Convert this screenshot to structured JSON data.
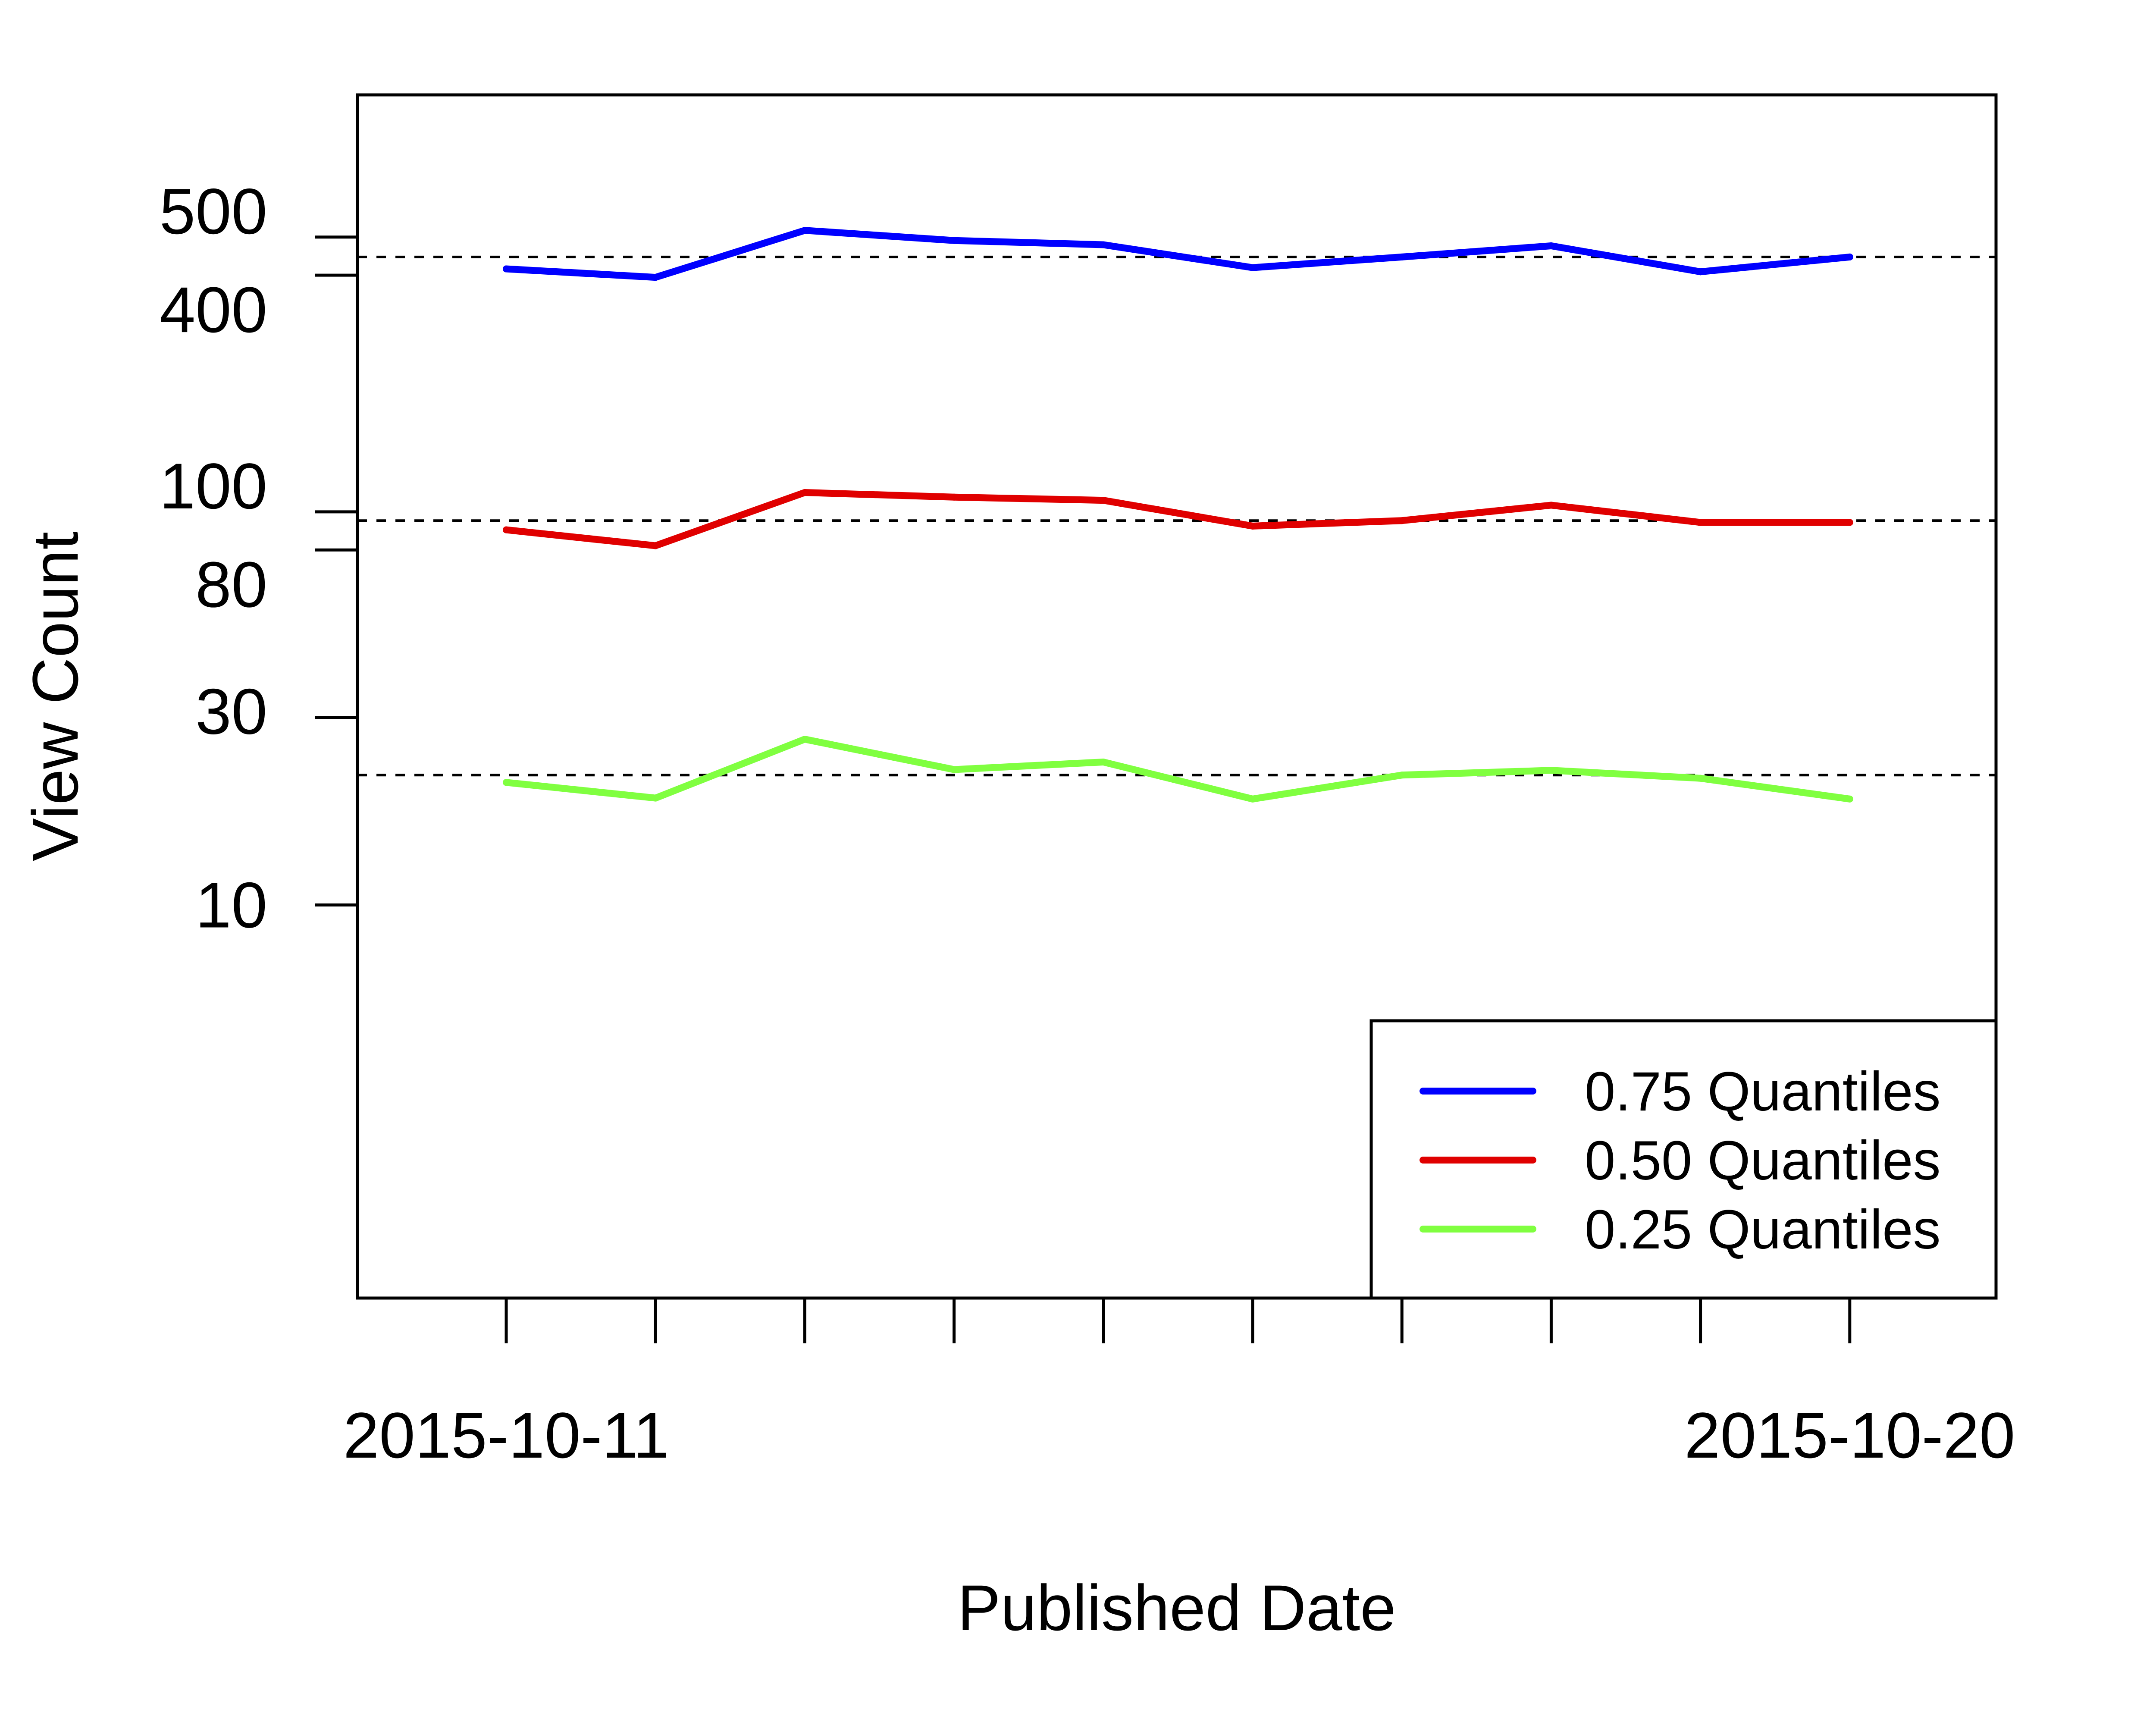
{
  "chart_data": {
    "type": "line",
    "title": "",
    "xlabel": "Published Date",
    "ylabel": "View Count",
    "x": [
      "2015-10-11",
      "2015-10-12",
      "2015-10-13",
      "2015-10-14",
      "2015-10-15",
      "2015-10-16",
      "2015-10-17",
      "2015-10-18",
      "2015-10-19",
      "2015-10-20"
    ],
    "x_tick_labels": [
      {
        "x": "2015-10-11",
        "label": "2015-10-11"
      },
      {
        "x": "2015-10-20",
        "label": "2015-10-20"
      }
    ],
    "y_ticks": [
      {
        "value": 10,
        "label": "10"
      },
      {
        "value": 30,
        "label": "30"
      },
      {
        "value": 80,
        "label": "80"
      },
      {
        "value": 100,
        "label": "100"
      },
      {
        "value": 400,
        "label": "400"
      },
      {
        "value": 500,
        "label": "500"
      }
    ],
    "y_scale": "log",
    "ylim": [
      1,
      1150
    ],
    "series": [
      {
        "name": "0.75 Quantiles",
        "color": "#0000ff",
        "values": [
          415,
          395,
          520,
          490,
          478,
          418,
          445,
          475,
          408,
          445
        ]
      },
      {
        "name": "0.50 Quantiles",
        "color": "#e00000",
        "values": [
          90,
          82,
          112,
          109,
          107,
          92,
          95,
          104,
          94,
          94
        ]
      },
      {
        "name": "0.25 Quantiles",
        "color": "#80ff40",
        "values": [
          20.5,
          18.7,
          26.4,
          22.1,
          23.1,
          18.6,
          21.4,
          22.0,
          21.0,
          18.6
        ]
      }
    ],
    "reference_lines": [
      {
        "value": 445,
        "style": "dashed"
      },
      {
        "value": 95,
        "style": "dashed"
      },
      {
        "value": 21.4,
        "style": "dashed"
      }
    ],
    "grid": false,
    "legend_position": "bottom-right"
  }
}
